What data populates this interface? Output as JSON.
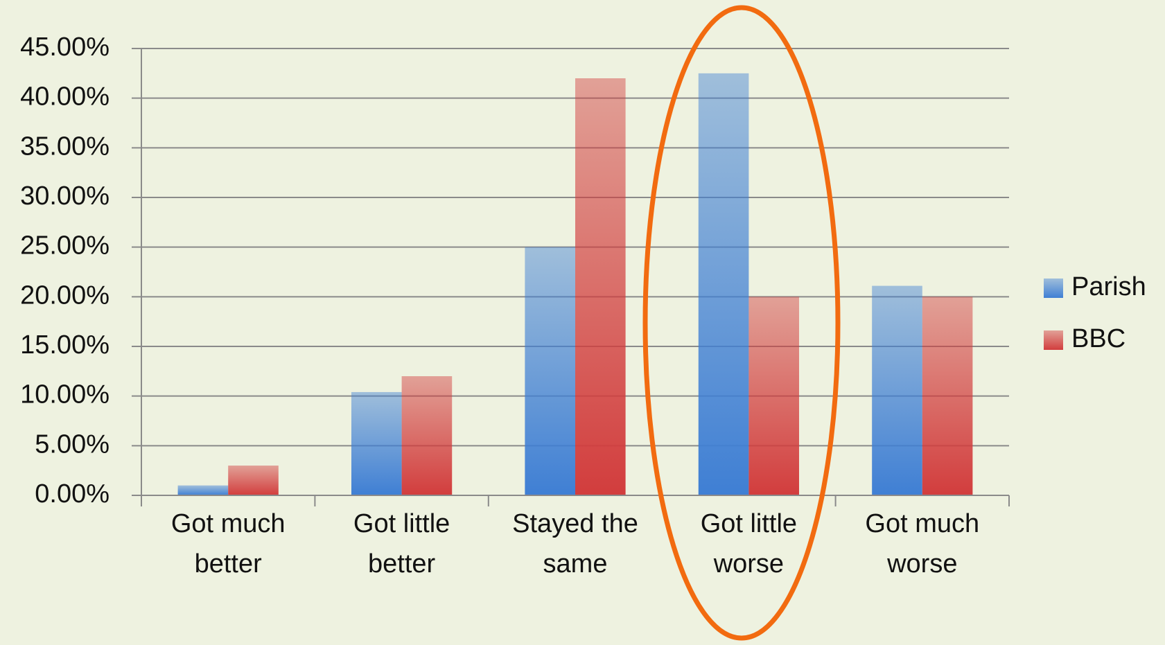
{
  "chart_data": {
    "type": "bar",
    "categories": [
      "Got much better",
      "Got little better",
      "Stayed the same",
      "Got little worse",
      "Got much worse"
    ],
    "series": [
      {
        "name": "Parish",
        "color": "#3f7fd4",
        "values": [
          1,
          10.4,
          25,
          42.5,
          21.1
        ]
      },
      {
        "name": "BBC",
        "color": "#d23d3d",
        "values": [
          3,
          12,
          42,
          20,
          20
        ]
      }
    ],
    "ylim": [
      0,
      45
    ],
    "yticks": [
      {
        "value": 0,
        "label": "0.00%"
      },
      {
        "value": 5,
        "label": "5.00%"
      },
      {
        "value": 10,
        "label": "10.00%"
      },
      {
        "value": 15,
        "label": "15.00%"
      },
      {
        "value": 20,
        "label": "20.00%"
      },
      {
        "value": 25,
        "label": "25.00%"
      },
      {
        "value": 30,
        "label": "30.00%"
      },
      {
        "value": 35,
        "label": "35.00%"
      },
      {
        "value": 40,
        "label": "40.00%"
      },
      {
        "value": 45,
        "label": "45.00%"
      }
    ],
    "grid": true,
    "legend": "right"
  }
}
